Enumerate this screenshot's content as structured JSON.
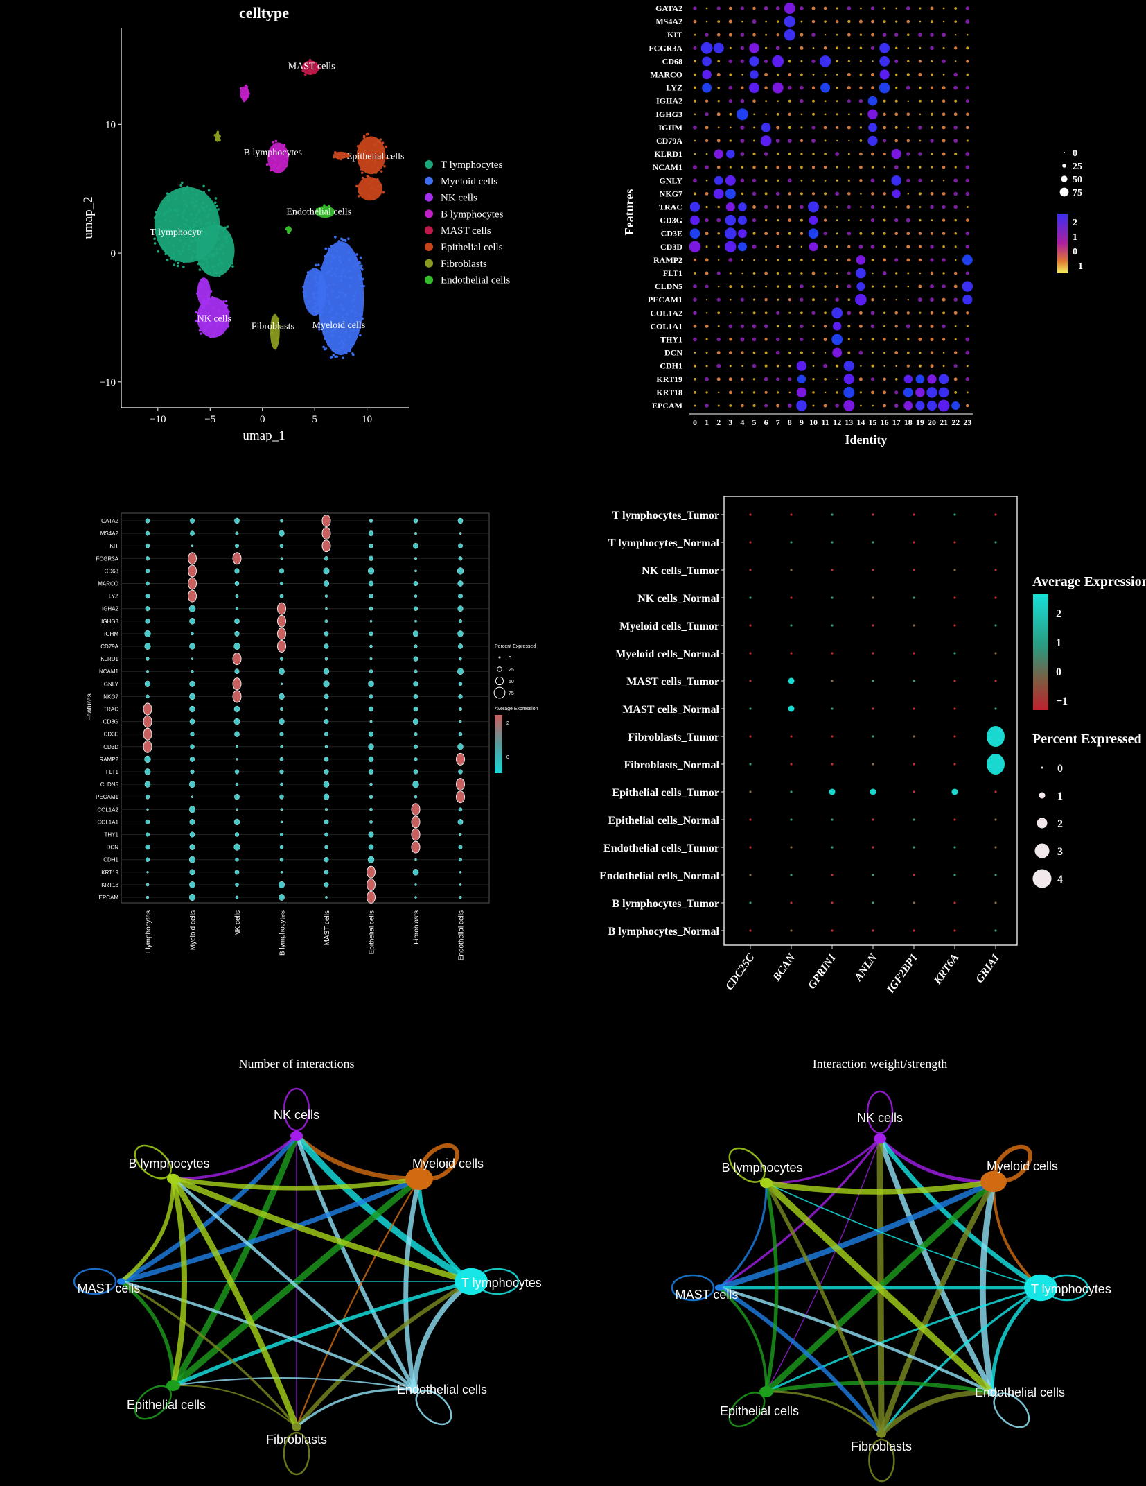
{
  "colors": {
    "bg": "#000000",
    "axis": "#ffffff"
  },
  "chart_data": [
    {
      "id": "umap",
      "type": "scatter",
      "title": "celltype",
      "xlabel": "umap_1",
      "ylabel": "umap_2",
      "xlim": [
        -13.5,
        14
      ],
      "ylim": [
        -12,
        17.5
      ],
      "xticks": [
        -10,
        -5,
        0,
        5,
        10
      ],
      "xtick_labels": [
        "−10",
        "−5",
        "0",
        "5",
        "10"
      ],
      "yticks": [
        10,
        0,
        -10
      ],
      "ytick_labels": [
        "10",
        "0",
        "−10"
      ],
      "legend": [
        {
          "name": "T lymphocytes",
          "color": "#1aa67a"
        },
        {
          "name": "Myeloid cells",
          "color": "#3d6ef0"
        },
        {
          "name": "NK cells",
          "color": "#a52ff0"
        },
        {
          "name": "B lymphocytes",
          "color": "#c21fc6"
        },
        {
          "name": "MAST cells",
          "color": "#c01a4c"
        },
        {
          "name": "Epithelial cells",
          "color": "#c8441b"
        },
        {
          "name": "Fibroblasts",
          "color": "#8a9a1e"
        },
        {
          "name": "Endothelial cells",
          "color": "#33bb2a"
        }
      ],
      "clusters": [
        {
          "cell": "T lymphocytes",
          "cx": -7.2,
          "cy": 2.2,
          "rx": 3.4,
          "ry": 3.2,
          "label": "T lymphocytes",
          "lx": -8.0,
          "ly": 1.4
        },
        {
          "cell": "T lymphocytes",
          "cx": -4.5,
          "cy": 0.2,
          "rx": 2.0,
          "ry": 2.2,
          "label": "",
          "lx": 0,
          "ly": 0
        },
        {
          "cell": "Myeloid cells",
          "cx": 7.5,
          "cy": -3.5,
          "rx": 2.4,
          "ry": 4.8,
          "label": "Myeloid cells",
          "lx": 7.3,
          "ly": -5.8
        },
        {
          "cell": "Myeloid cells",
          "cx": 5.0,
          "cy": -3.0,
          "rx": 1.2,
          "ry": 2.0,
          "label": "",
          "lx": 0,
          "ly": 0
        },
        {
          "cell": "NK cells",
          "cx": -4.7,
          "cy": -5.0,
          "rx": 1.7,
          "ry": 1.7,
          "label": "NK cells",
          "lx": -4.6,
          "ly": -5.3
        },
        {
          "cell": "NK cells",
          "cx": -5.6,
          "cy": -3.0,
          "rx": 0.7,
          "ry": 1.2,
          "label": "",
          "lx": 0,
          "ly": 0
        },
        {
          "cell": "B lymphocytes",
          "cx": 1.5,
          "cy": 7.4,
          "rx": 1.1,
          "ry": 1.3,
          "label": "B lymphocytes",
          "lx": 1.0,
          "ly": 7.6
        },
        {
          "cell": "B lymphocytes",
          "cx": -1.7,
          "cy": 12.4,
          "rx": 0.5,
          "ry": 0.6,
          "label": "",
          "lx": 0,
          "ly": 0
        },
        {
          "cell": "MAST cells",
          "cx": 4.6,
          "cy": 14.4,
          "rx": 0.9,
          "ry": 0.6,
          "label": "MAST cells",
          "lx": 4.7,
          "ly": 14.3
        },
        {
          "cell": "Epithelial cells",
          "cx": 10.4,
          "cy": 7.6,
          "rx": 1.5,
          "ry": 1.6,
          "label": "Epithelial cells",
          "lx": 10.8,
          "ly": 7.3
        },
        {
          "cell": "Epithelial cells",
          "cx": 10.3,
          "cy": 5.0,
          "rx": 1.3,
          "ry": 1.0,
          "label": "",
          "lx": 0,
          "ly": 0
        },
        {
          "cell": "Epithelial cells",
          "cx": 7.5,
          "cy": 7.6,
          "rx": 0.8,
          "ry": 0.3,
          "label": "",
          "lx": 0,
          "ly": 0
        },
        {
          "cell": "Fibroblasts",
          "cx": 1.2,
          "cy": -6.1,
          "rx": 0.5,
          "ry": 1.5,
          "label": "Fibroblasts",
          "lx": 1.0,
          "ly": -5.9
        },
        {
          "cell": "Fibroblasts",
          "cx": -4.3,
          "cy": 9.0,
          "rx": 0.25,
          "ry": 0.4,
          "label": "",
          "lx": 0,
          "ly": 0
        },
        {
          "cell": "Endothelial cells",
          "cx": 6.0,
          "cy": 3.2,
          "rx": 1.0,
          "ry": 0.5,
          "label": "Endothelial cells",
          "lx": 5.4,
          "ly": 3.0
        },
        {
          "cell": "Endothelial cells",
          "cx": 2.5,
          "cy": 1.8,
          "rx": 0.2,
          "ry": 0.2,
          "label": "",
          "lx": 0,
          "ly": 0
        }
      ]
    },
    {
      "id": "dot_identity",
      "type": "scatter",
      "xlabel": "Identity",
      "ylabel": "Features",
      "features": [
        "GATA2",
        "MS4A2",
        "KIT",
        "FCGR3A",
        "CD68",
        "MARCO",
        "LYZ",
        "IGHA2",
        "IGHG3",
        "IGHM",
        "CD79A",
        "KLRD1",
        "NCAM1",
        "GNLY",
        "NKG7",
        "TRAC",
        "CD3G",
        "CD3E",
        "CD3D",
        "RAMP2",
        "FLT1",
        "CLDN5",
        "PECAM1",
        "COL1A2",
        "COL1A1",
        "THY1",
        "DCN",
        "CDH1",
        "KRT19",
        "KRT18",
        "EPCAM"
      ],
      "identities": [
        "0",
        "1",
        "2",
        "3",
        "4",
        "5",
        "6",
        "7",
        "8",
        "9",
        "10",
        "11",
        "12",
        "13",
        "14",
        "15",
        "16",
        "17",
        "18",
        "19",
        "20",
        "21",
        "22",
        "23"
      ],
      "highlights": [
        {
          "feature": "GATA2",
          "ids": [
            8
          ]
        },
        {
          "feature": "MS4A2",
          "ids": [
            8
          ]
        },
        {
          "feature": "KIT",
          "ids": [
            8
          ]
        },
        {
          "feature": "FCGR3A",
          "ids": [
            1,
            2,
            5,
            16
          ]
        },
        {
          "feature": "CD68",
          "ids": [
            1,
            5,
            7,
            11,
            16
          ]
        },
        {
          "feature": "MARCO",
          "ids": [
            1,
            5,
            16
          ]
        },
        {
          "feature": "LYZ",
          "ids": [
            1,
            5,
            7,
            11,
            16
          ]
        },
        {
          "feature": "IGHA2",
          "ids": [
            15
          ]
        },
        {
          "feature": "IGHG3",
          "ids": [
            4,
            15
          ]
        },
        {
          "feature": "IGHM",
          "ids": [
            6,
            15
          ]
        },
        {
          "feature": "CD79A",
          "ids": [
            6,
            15
          ]
        },
        {
          "feature": "KLRD1",
          "ids": [
            2,
            3,
            17
          ]
        },
        {
          "feature": "GNLY",
          "ids": [
            2,
            3,
            17
          ]
        },
        {
          "feature": "NKG7",
          "ids": [
            2,
            3,
            17
          ]
        },
        {
          "feature": "TRAC",
          "ids": [
            0,
            3,
            4,
            10
          ]
        },
        {
          "feature": "CD3G",
          "ids": [
            0,
            3,
            4,
            10
          ]
        },
        {
          "feature": "CD3E",
          "ids": [
            0,
            3,
            4,
            10
          ]
        },
        {
          "feature": "CD3D",
          "ids": [
            0,
            3,
            4,
            10
          ]
        },
        {
          "feature": "RAMP2",
          "ids": [
            14,
            23
          ]
        },
        {
          "feature": "FLT1",
          "ids": [
            14
          ]
        },
        {
          "feature": "CLDN5",
          "ids": [
            14,
            23
          ]
        },
        {
          "feature": "PECAM1",
          "ids": [
            14,
            23
          ]
        },
        {
          "feature": "COL1A2",
          "ids": [
            12
          ]
        },
        {
          "feature": "COL1A1",
          "ids": [
            12
          ]
        },
        {
          "feature": "THY1",
          "ids": [
            12
          ]
        },
        {
          "feature": "DCN",
          "ids": [
            12
          ]
        },
        {
          "feature": "CDH1",
          "ids": [
            9,
            13
          ]
        },
        {
          "feature": "KRT19",
          "ids": [
            9,
            13,
            18,
            19,
            20,
            21
          ]
        },
        {
          "feature": "KRT18",
          "ids": [
            9,
            13,
            18,
            19,
            20,
            21
          ]
        },
        {
          "feature": "EPCAM",
          "ids": [
            9,
            13,
            18,
            19,
            20,
            21,
            22
          ]
        }
      ],
      "size_legend": [
        "0",
        "25",
        "50",
        "75"
      ],
      "color_legend": [
        "2",
        "1",
        "0",
        "−1"
      ]
    },
    {
      "id": "dot_celltype",
      "type": "scatter",
      "xlabel": "",
      "ylabel": "Features",
      "features": [
        "GATA2",
        "MS4A2",
        "KIT",
        "FCGR3A",
        "CD68",
        "MARCO",
        "LYZ",
        "IGHA2",
        "IGHG3",
        "IGHM",
        "CD79A",
        "KLRD1",
        "NCAM1",
        "GNLY",
        "NKG7",
        "TRAC",
        "CD3G",
        "CD3E",
        "CD3D",
        "RAMP2",
        "FLT1",
        "CLDN5",
        "PECAM1",
        "COL1A2",
        "COL1A1",
        "THY1",
        "DCN",
        "CDH1",
        "KRT19",
        "KRT18",
        "EPCAM"
      ],
      "cell_types": [
        "T lymphocytes",
        "Myeloid cells",
        "NK cells",
        "B lymphocytes",
        "MAST cells",
        "Epithelial cells",
        "Fibroblasts",
        "Endothelial cells"
      ],
      "highlights": [
        {
          "feature": "GATA2",
          "types": [
            4
          ]
        },
        {
          "feature": "MS4A2",
          "types": [
            4
          ]
        },
        {
          "feature": "KIT",
          "types": [
            4
          ]
        },
        {
          "feature": "FCGR3A",
          "types": [
            1,
            2
          ]
        },
        {
          "feature": "CD68",
          "types": [
            1
          ]
        },
        {
          "feature": "MARCO",
          "types": [
            1
          ]
        },
        {
          "feature": "LYZ",
          "types": [
            1
          ]
        },
        {
          "feature": "IGHA2",
          "types": [
            3
          ]
        },
        {
          "feature": "IGHG3",
          "types": [
            3
          ]
        },
        {
          "feature": "IGHM",
          "types": [
            3
          ]
        },
        {
          "feature": "CD79A",
          "types": [
            3
          ]
        },
        {
          "feature": "KLRD1",
          "types": [
            2
          ]
        },
        {
          "feature": "GNLY",
          "types": [
            2
          ]
        },
        {
          "feature": "NKG7",
          "types": [
            2
          ]
        },
        {
          "feature": "TRAC",
          "types": [
            0
          ]
        },
        {
          "feature": "CD3G",
          "types": [
            0
          ]
        },
        {
          "feature": "CD3E",
          "types": [
            0
          ]
        },
        {
          "feature": "CD3D",
          "types": [
            0
          ]
        },
        {
          "feature": "RAMP2",
          "types": [
            7
          ]
        },
        {
          "feature": "CLDN5",
          "types": [
            7
          ]
        },
        {
          "feature": "PECAM1",
          "types": [
            7
          ]
        },
        {
          "feature": "COL1A2",
          "types": [
            6
          ]
        },
        {
          "feature": "COL1A1",
          "types": [
            6
          ]
        },
        {
          "feature": "THY1",
          "types": [
            6
          ]
        },
        {
          "feature": "DCN",
          "types": [
            6
          ]
        },
        {
          "feature": "KRT19",
          "types": [
            5
          ]
        },
        {
          "feature": "KRT18",
          "types": [
            5
          ]
        },
        {
          "feature": "EPCAM",
          "types": [
            5
          ]
        }
      ],
      "size_legend_title": "Percent Expressed",
      "size_legend": [
        "0",
        "25",
        "50",
        "75"
      ],
      "color_legend_title": "Average Expression",
      "color_legend": [
        "2",
        "0"
      ]
    },
    {
      "id": "dot_tumor_normal",
      "type": "scatter",
      "groups": [
        "T lymphocytes_Tumor",
        "T lymphocytes_Normal",
        "NK cells_Tumor",
        "NK cells_Normal",
        "Myeloid cells_Tumor",
        "Myeloid cells_Normal",
        "MAST cells_Tumor",
        "MAST cells_Normal",
        "Fibroblasts_Tumor",
        "Fibroblasts_Normal",
        "Epithelial cells_Tumor",
        "Epithelial cells_Normal",
        "Endothelial cells_Tumor",
        "Endothelial cells_Normal",
        "B lymphocytes_Tumor",
        "B lymphocytes_Normal"
      ],
      "genes": [
        "CDC25C",
        "BCAN",
        "GPRIN1",
        "ANLN",
        "IGF2BP1",
        "KRT6A",
        "GRIA1"
      ],
      "points": [
        {
          "group": "MAST cells_Tumor",
          "gene": "BCAN",
          "pct": 0.6,
          "avg": 2.3
        },
        {
          "group": "MAST cells_Normal",
          "gene": "BCAN",
          "pct": 0.5,
          "avg": 1.8
        },
        {
          "group": "Fibroblasts_Tumor",
          "gene": "GRIA1",
          "pct": 3.8,
          "avg": 2.0
        },
        {
          "group": "Fibroblasts_Normal",
          "gene": "GRIA1",
          "pct": 3.6,
          "avg": 2.1
        },
        {
          "group": "Epithelial cells_Tumor",
          "gene": "GPRIN1",
          "pct": 0.5,
          "avg": 2.0
        },
        {
          "group": "Epithelial cells_Tumor",
          "gene": "ANLN",
          "pct": 0.3,
          "avg": 1.9
        },
        {
          "group": "Epithelial cells_Tumor",
          "gene": "KRT6A",
          "pct": 0.3,
          "avg": 2.0
        }
      ],
      "color_legend_title": "Average Expression",
      "color_legend": [
        "2",
        "1",
        "0",
        "−1"
      ],
      "size_legend_title": "Percent Expressed",
      "size_legend": [
        "0",
        "1",
        "2",
        "3",
        "4"
      ]
    },
    {
      "id": "net_count",
      "type": "network",
      "title": "Number of interactions",
      "nodes": [
        {
          "name": "NK cells",
          "color": "#a31ee8",
          "size": 9
        },
        {
          "name": "Myeloid cells",
          "color": "#d16b12",
          "size": 20
        },
        {
          "name": "T lymphocytes",
          "color": "#16e6e6",
          "size": 24
        },
        {
          "name": "Endothelial cells",
          "color": "#8ee0f5",
          "size": 7
        },
        {
          "name": "Fibroblasts",
          "color": "#7a8a20",
          "size": 7
        },
        {
          "name": "Epithelial cells",
          "color": "#1d9e1d",
          "size": 10
        },
        {
          "name": "MAST cells",
          "color": "#1d7fe6",
          "size": 6
        },
        {
          "name": "B lymphocytes",
          "color": "#a6d21a",
          "size": 9
        }
      ]
    },
    {
      "id": "net_weight",
      "type": "network",
      "title": "Interaction weight/strength",
      "nodes": [
        {
          "name": "NK cells",
          "color": "#a31ee8",
          "size": 9
        },
        {
          "name": "Myeloid cells",
          "color": "#d16b12",
          "size": 19
        },
        {
          "name": "T lymphocytes",
          "color": "#16e6e6",
          "size": 24
        },
        {
          "name": "Endothelial cells",
          "color": "#8ee0f5",
          "size": 7
        },
        {
          "name": "Fibroblasts",
          "color": "#7a8a20",
          "size": 7
        },
        {
          "name": "Epithelial cells",
          "color": "#1d9e1d",
          "size": 10
        },
        {
          "name": "MAST cells",
          "color": "#1d7fe6",
          "size": 6
        },
        {
          "name": "B lymphocytes",
          "color": "#a6d21a",
          "size": 9
        }
      ]
    }
  ]
}
